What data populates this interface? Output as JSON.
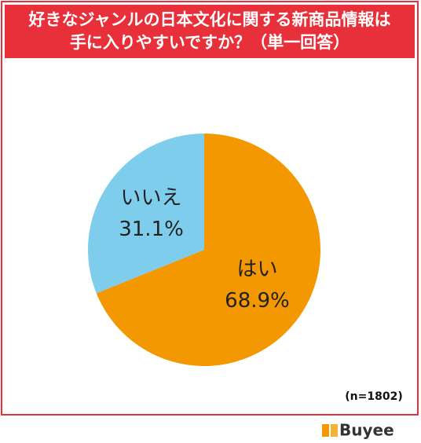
{
  "chart_data": {
    "type": "pie",
    "title": [
      "好きなジャンルの日本文化に関する新商品情報は",
      "手に入りやすいですか？（単一回答）"
    ],
    "categories": [
      "はい",
      "いいえ"
    ],
    "values": [
      68.9,
      31.1
    ],
    "value_labels": [
      "68.9%",
      "31.1%"
    ],
    "colors": [
      "#f39800",
      "#7fcdec"
    ],
    "note": "(n=1802)"
  },
  "logo": "Buyee"
}
